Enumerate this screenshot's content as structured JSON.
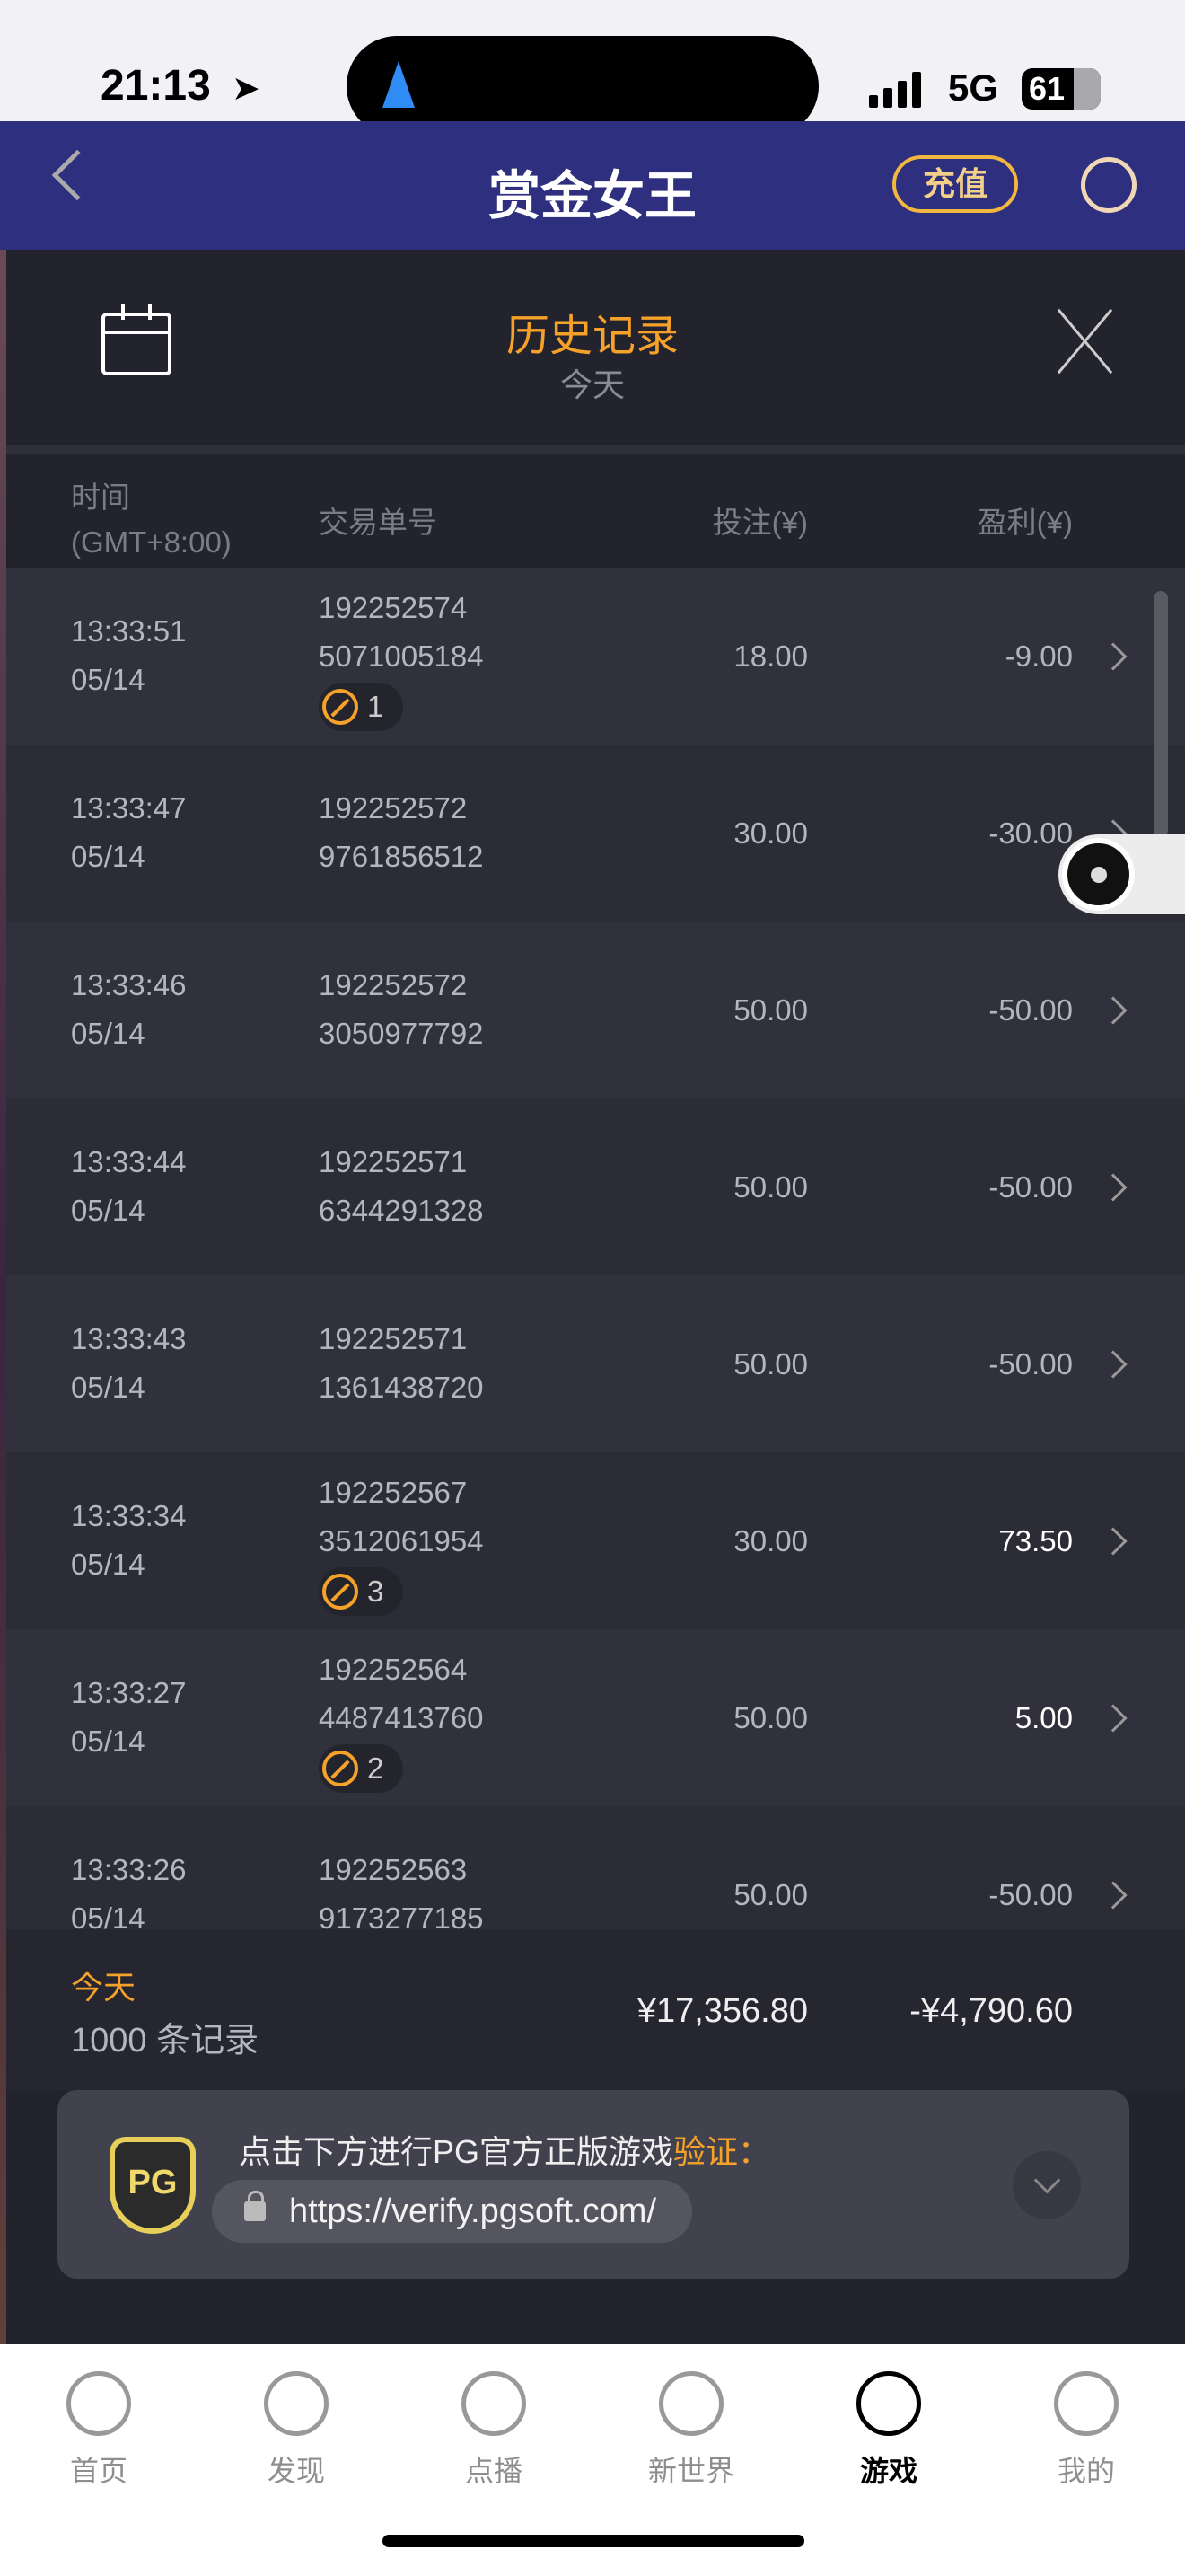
{
  "status_bar": {
    "time": "21:13",
    "network": "5G",
    "battery": "61"
  },
  "navbar": {
    "title": "赏金女王",
    "recharge_label": "充值"
  },
  "panel": {
    "title": "历史记录",
    "subtitle": "今天"
  },
  "columns": {
    "time": "时间",
    "timezone": "(GMT+8:00)",
    "order_id": "交易单号",
    "bet": "投注(¥)",
    "profit": "盈利(¥)"
  },
  "rows": [
    {
      "time": "13:33:51",
      "date": "05/14",
      "id1": "192252574",
      "id2": "5071005184",
      "badge": "1",
      "bet": "18.00",
      "profit": "-9.00"
    },
    {
      "time": "13:33:47",
      "date": "05/14",
      "id1": "192252572",
      "id2": "9761856512",
      "bet": "30.00",
      "profit": "-30.00"
    },
    {
      "time": "13:33:46",
      "date": "05/14",
      "id1": "192252572",
      "id2": "3050977792",
      "bet": "50.00",
      "profit": "-50.00"
    },
    {
      "time": "13:33:44",
      "date": "05/14",
      "id1": "192252571",
      "id2": "6344291328",
      "bet": "50.00",
      "profit": "-50.00"
    },
    {
      "time": "13:33:43",
      "date": "05/14",
      "id1": "192252571",
      "id2": "1361438720",
      "bet": "50.00",
      "profit": "-50.00"
    },
    {
      "time": "13:33:34",
      "date": "05/14",
      "id1": "192252567",
      "id2": "3512061954",
      "badge": "3",
      "bet": "30.00",
      "profit": "73.50"
    },
    {
      "time": "13:33:27",
      "date": "05/14",
      "id1": "192252564",
      "id2": "4487413760",
      "badge": "2",
      "bet": "50.00",
      "profit": "5.00"
    },
    {
      "time": "13:33:26",
      "date": "05/14",
      "id1": "192252563",
      "id2": "9173277185",
      "bet": "50.00",
      "profit": "-50.00"
    }
  ],
  "summary": {
    "period": "今天",
    "count": "1000 条记录",
    "total_bet": "¥17,356.80",
    "total_profit": "-¥4,790.60"
  },
  "verify_card": {
    "logo": "PG",
    "text": "点击下方进行PG官方正版游戏",
    "highlight": "验证：",
    "url": "https://verify.pgsoft.com/"
  },
  "tabs": [
    {
      "label": "首页",
      "icon": "home-icon"
    },
    {
      "label": "发现",
      "icon": "discover-icon"
    },
    {
      "label": "点播",
      "icon": "vod-icon"
    },
    {
      "label": "新世界",
      "icon": "globe-icon"
    },
    {
      "label": "游戏",
      "icon": "game-icon",
      "active": true
    },
    {
      "label": "我的",
      "icon": "profile-icon"
    }
  ],
  "colors": {
    "accent": "#f5a12a",
    "navbar": "#2e2f7e",
    "panel": "#23232e"
  }
}
